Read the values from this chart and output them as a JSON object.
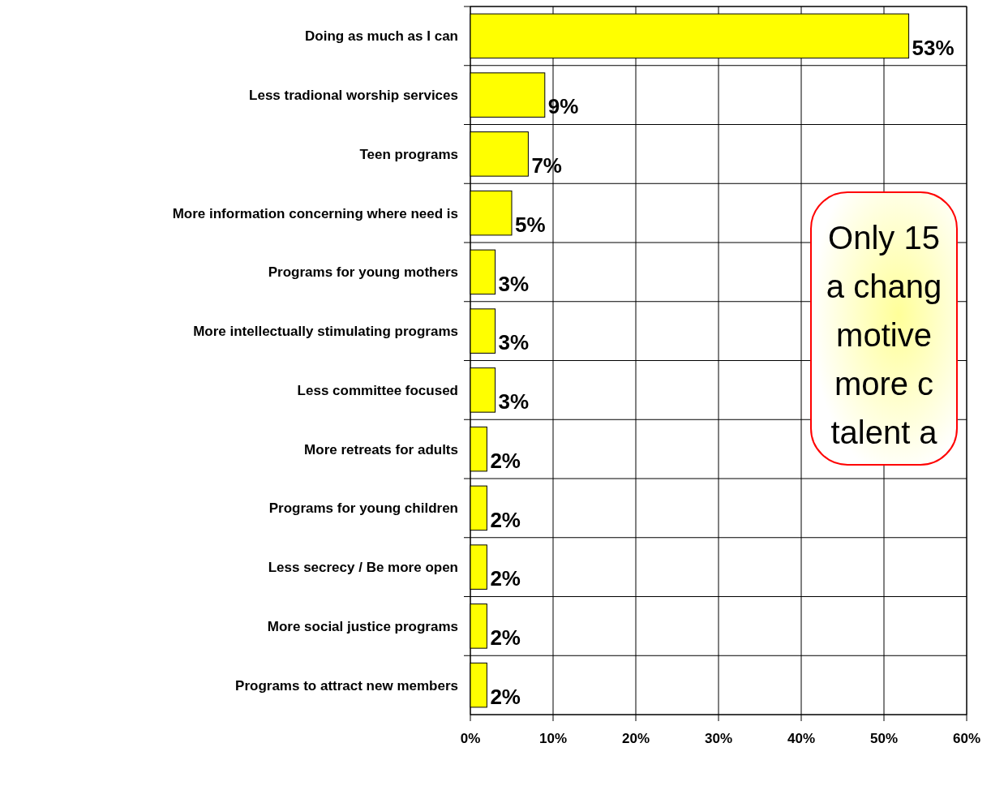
{
  "chart_data": {
    "type": "bar",
    "orientation": "horizontal",
    "categories": [
      "Doing as much as I can",
      "Less tradional worship services",
      "Teen programs",
      "More information concerning where need is",
      "Programs for young mothers",
      "More intellectually stimulating programs",
      "Less committee focused",
      "More retreats for adults",
      "Programs for young children",
      "Less secrecy / Be more open",
      "More social justice programs",
      "Programs to attract new members"
    ],
    "values": [
      53,
      9,
      7,
      5,
      3,
      3,
      3,
      2,
      2,
      2,
      2,
      2
    ],
    "value_labels": [
      "53%",
      "9%",
      "7%",
      "5%",
      "3%",
      "3%",
      "3%",
      "2%",
      "2%",
      "2%",
      "2%",
      "2%"
    ],
    "color": "#ffff00",
    "xlim": [
      0,
      60
    ],
    "xticks": [
      {
        "value": 0,
        "label": "0%"
      },
      {
        "value": 10,
        "label": "10%"
      },
      {
        "value": 20,
        "label": "20%"
      },
      {
        "value": 30,
        "label": "30%"
      },
      {
        "value": 40,
        "label": "40%"
      },
      {
        "value": 50,
        "label": "50%"
      },
      {
        "value": 60,
        "label": "60%"
      }
    ],
    "grid": true,
    "annotations": [
      "Only 15\na chang\nmotive\nmore c\ntalent a"
    ]
  }
}
